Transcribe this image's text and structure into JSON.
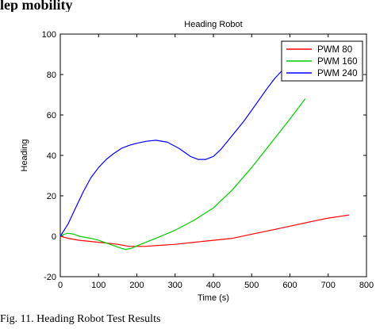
{
  "page": {
    "top_text": "lep mobility",
    "caption": "Fig. 11. Heading Robot Test Results"
  },
  "chart_data": {
    "type": "line",
    "title": "Heading Robot",
    "xlabel": "Time (s)",
    "ylabel": "Heading",
    "xlim": [
      0,
      800
    ],
    "ylim": [
      -20,
      100
    ],
    "xticks": [
      0,
      100,
      200,
      300,
      400,
      500,
      600,
      700,
      800
    ],
    "yticks": [
      -20,
      0,
      20,
      40,
      60,
      80,
      100
    ],
    "grid": false,
    "legend_position": "top-right",
    "series": [
      {
        "name": "PWM 80",
        "color": "#ff0000",
        "x": [
          0,
          20,
          50,
          100,
          150,
          180,
          220,
          260,
          300,
          350,
          400,
          450,
          500,
          550,
          600,
          650,
          700,
          755
        ],
        "y": [
          0,
          -1,
          -2,
          -3,
          -4,
          -5,
          -5,
          -4.5,
          -4,
          -3,
          -2,
          -1,
          1,
          3,
          5,
          7,
          9,
          10.5
        ]
      },
      {
        "name": "PWM 160",
        "color": "#00cc00",
        "x": [
          0,
          10,
          20,
          35,
          50,
          80,
          100,
          130,
          160,
          170,
          185,
          210,
          250,
          300,
          350,
          400,
          450,
          500,
          550,
          600,
          640
        ],
        "y": [
          0,
          1,
          1.5,
          1,
          0,
          -1,
          -2,
          -4,
          -6,
          -6.5,
          -6,
          -4,
          -1,
          3,
          8,
          14,
          23,
          34,
          46,
          58,
          68
        ]
      },
      {
        "name": "PWM 240",
        "color": "#0000ff",
        "x": [
          0,
          10,
          20,
          30,
          40,
          60,
          80,
          100,
          120,
          140,
          160,
          180,
          200,
          225,
          250,
          280,
          310,
          340,
          360,
          380,
          400,
          420,
          450,
          480,
          510,
          540,
          560,
          580
        ],
        "y": [
          0,
          3,
          6,
          10,
          14,
          22,
          29,
          34,
          38,
          41,
          43.5,
          45,
          46,
          47,
          47.5,
          46.5,
          43.5,
          39.5,
          38,
          38,
          39.5,
          43,
          50,
          57,
          65,
          73,
          78,
          82
        ]
      }
    ]
  }
}
